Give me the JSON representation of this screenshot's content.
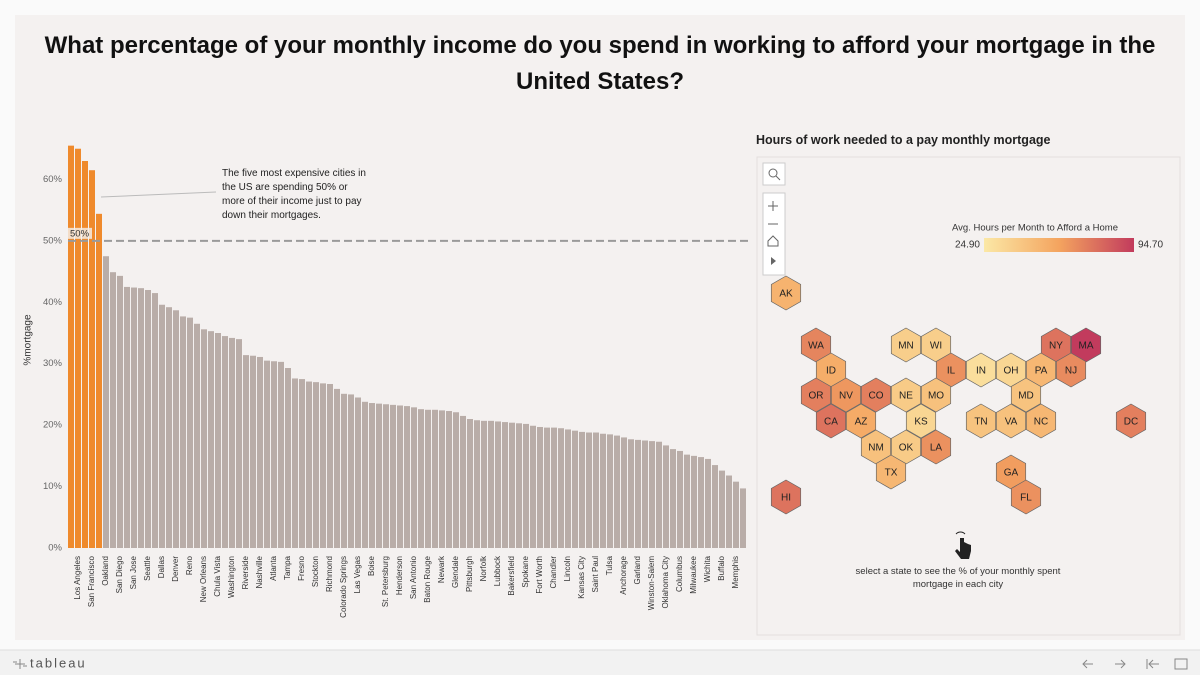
{
  "title": "What percentage of your monthly income do you spend in working to afford your mortgage in the United States?",
  "chart_data": {
    "type": "bar",
    "y_label": "%mortgage",
    "annotation": "The five most expensive cities in the US are spending 50% or more of their income just to pay down their mortgages.",
    "reference_line": {
      "value": 50,
      "label": "50%"
    },
    "color": "#b9ada8",
    "highlight_color": "#ef8a2c",
    "ylim": [
      0,
      70
    ],
    "yticks": [
      {
        "value": 0,
        "label": "0%"
      },
      {
        "value": 10,
        "label": "10%"
      },
      {
        "value": 20,
        "label": "20%"
      },
      {
        "value": 30,
        "label": "30%"
      },
      {
        "value": 40,
        "label": "40%"
      },
      {
        "value": 50,
        "label": "50%"
      },
      {
        "value": 60,
        "label": "60%"
      }
    ],
    "categories": [
      null,
      "Los Angeles",
      null,
      "San Francisco",
      null,
      "Oakland",
      null,
      "San Diego",
      null,
      "San Jose",
      null,
      "Seattle",
      null,
      "Dallas",
      null,
      "Denver",
      null,
      "Reno",
      null,
      "New Orleans",
      null,
      "Chula Vista",
      null,
      "Washington",
      null,
      "Riverside",
      null,
      "Nashville",
      null,
      "Atlanta",
      null,
      "Tampa",
      null,
      "Fresno",
      null,
      "Stockton",
      null,
      "Richmond",
      null,
      "Colorado Springs",
      null,
      "Las Vegas",
      null,
      "Boise",
      null,
      "St. Petersburg",
      null,
      "Henderson",
      null,
      "San Antonio",
      null,
      "Baton Rouge",
      null,
      "Newark",
      null,
      "Glendale",
      null,
      "Pittsburgh",
      null,
      "Norfolk",
      null,
      "Lubbock",
      null,
      "Bakersfield",
      null,
      "Spokane",
      null,
      "Fort Worth",
      null,
      "Chandler",
      null,
      "Lincoln",
      null,
      "Kansas City",
      null,
      "Saint Paul",
      null,
      "Tulsa",
      null,
      "Anchorage",
      null,
      "Garland",
      null,
      "Winston-Salem",
      null,
      "Oklahoma City",
      null,
      "Columbus",
      null,
      "Milwaukee",
      null,
      "Wichita",
      null,
      "Buffalo",
      null,
      "Memphis",
      null
    ],
    "values": [
      65.5,
      65.0,
      63.0,
      61.5,
      54.4,
      47.5,
      44.9,
      44.3,
      42.5,
      42.4,
      42.3,
      42.0,
      41.5,
      39.6,
      39.2,
      38.7,
      37.7,
      37.5,
      36.5,
      35.6,
      35.3,
      35.0,
      34.5,
      34.2,
      34.0,
      31.4,
      31.3,
      31.1,
      30.5,
      30.4,
      30.3,
      29.3,
      27.6,
      27.5,
      27.1,
      27.0,
      26.8,
      26.7,
      25.9,
      25.1,
      25.0,
      24.5,
      23.8,
      23.6,
      23.5,
      23.4,
      23.3,
      23.2,
      23.1,
      22.9,
      22.6,
      22.5,
      22.5,
      22.4,
      22.3,
      22.1,
      21.5,
      21.0,
      20.8,
      20.7,
      20.7,
      20.6,
      20.5,
      20.4,
      20.3,
      20.2,
      19.9,
      19.7,
      19.6,
      19.6,
      19.5,
      19.3,
      19.1,
      18.9,
      18.8,
      18.8,
      18.6,
      18.5,
      18.3,
      18.0,
      17.7,
      17.6,
      17.5,
      17.4,
      17.3,
      16.7,
      16.1,
      15.8,
      15.2,
      15.0,
      14.8,
      14.5,
      13.5,
      12.6,
      11.8,
      10.8,
      9.7
    ]
  },
  "map": {
    "title": "Hours of work needed to a pay monthly mortgage",
    "legend": {
      "title": "Avg. Hours per Month to Afford a Home",
      "min": {
        "value": 24.9,
        "label": "24.90"
      },
      "max": {
        "value": 94.7,
        "label": "94.70"
      },
      "colors": [
        "#fbe8a6",
        "#f4a45f",
        "#c23b5d"
      ]
    },
    "states": [
      {
        "label": "AK",
        "value": 52
      },
      {
        "label": "WA",
        "value": 70
      },
      {
        "label": "MN",
        "value": 38
      },
      {
        "label": "WI",
        "value": 38
      },
      {
        "label": "NY",
        "value": 76
      },
      {
        "label": "MA",
        "value": 94.7
      },
      {
        "label": "ID",
        "value": 55
      },
      {
        "label": "IL",
        "value": 66
      },
      {
        "label": "IN",
        "value": 30
      },
      {
        "label": "OH",
        "value": 34
      },
      {
        "label": "PA",
        "value": 50
      },
      {
        "label": "NJ",
        "value": 68
      },
      {
        "label": "OR",
        "value": 72
      },
      {
        "label": "NV",
        "value": 64
      },
      {
        "label": "CO",
        "value": 72
      },
      {
        "label": "NE",
        "value": 40
      },
      {
        "label": "MO",
        "value": 45
      },
      {
        "label": "MD",
        "value": 44
      },
      {
        "label": "CA",
        "value": 76
      },
      {
        "label": "AZ",
        "value": 56
      },
      {
        "label": "KS",
        "value": 34
      },
      {
        "label": "TN",
        "value": 44
      },
      {
        "label": "VA",
        "value": 45
      },
      {
        "label": "NC",
        "value": 50
      },
      {
        "label": "DC",
        "value": 72
      },
      {
        "label": "NM",
        "value": 45
      },
      {
        "label": "OK",
        "value": 40
      },
      {
        "label": "LA",
        "value": 66
      },
      {
        "label": "TX",
        "value": 50
      },
      {
        "label": "GA",
        "value": 62
      },
      {
        "label": "HI",
        "value": 76
      },
      {
        "label": "FL",
        "value": 66
      }
    ]
  },
  "hint": "select a state to see the % of your monthly spent mortgage in each city",
  "footer": {
    "logo": "tableau"
  }
}
